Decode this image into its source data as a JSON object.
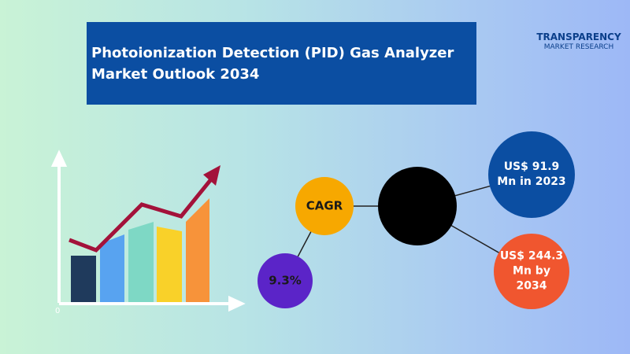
{
  "header": {
    "title": "Photoionization Detection (PID) Gas Analyzer Market Outlook 2034"
  },
  "logo": {
    "name": "TRANSPARENCY",
    "subtitle": "MARKET RESEARCH"
  },
  "chart_icon": {
    "axis_origin": "0"
  },
  "bubbles": {
    "cagr_label": "CAGR",
    "cagr_value": "9.3%",
    "market_2023": "US$ 91.9 Mn in 2023",
    "market_2034": "US$ 244.3 Mn by 2034"
  }
}
